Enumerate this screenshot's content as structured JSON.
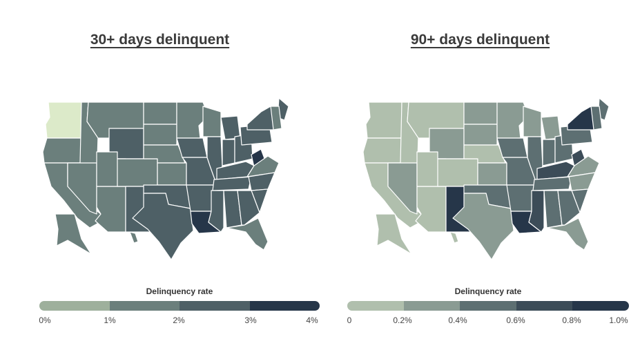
{
  "panels": [
    {
      "title": "30+ days delinquent",
      "legend": {
        "title": "Delinquency rate",
        "ticks": [
          "0%",
          "1%",
          "2%",
          "3%",
          "4%"
        ],
        "colors": [
          "#dceac9",
          "#9eb09c",
          "#6b7f7c",
          "#4e6066",
          "#263649"
        ]
      },
      "states": {
        "WA": 0,
        "OR": 2,
        "CA": 2,
        "ID": 2,
        "NV": 2,
        "AZ": 2,
        "MT": 2,
        "WY": 3,
        "UT": 2,
        "CO": 2,
        "NM": 3,
        "ND": 2,
        "SD": 2,
        "NE": 2,
        "KS": 2,
        "OK": 3,
        "TX": 3,
        "MN": 2,
        "IA": 3,
        "MO": 3,
        "AR": 3,
        "LA": 4,
        "WI": 2,
        "IL": 3,
        "MI": 3,
        "IN": 3,
        "KY": 3,
        "TN": 3,
        "MS": 3,
        "AL": 3,
        "OH": 3,
        "WV": 4,
        "VA": 2,
        "NC": 3,
        "SC": 3,
        "GA": 3,
        "FL": 2,
        "PA": 3,
        "NY": 3,
        "ME": 3,
        "NE-ST": 2,
        "AK": 2,
        "HI": 2
      }
    },
    {
      "title": "90+ days delinquent",
      "legend": {
        "title": "Delinquency rate",
        "ticks": [
          "0",
          "0.2%",
          "0.4%",
          "0.6%",
          "0.8%",
          "1.0%"
        ],
        "colors": [
          "#dceac9",
          "#b0bfad",
          "#8a9b93",
          "#5d6f72",
          "#3c4c58",
          "#263649"
        ]
      },
      "states": {
        "WA": 1,
        "OR": 1,
        "CA": 1,
        "ID": 1,
        "NV": 2,
        "AZ": 1,
        "MT": 1,
        "WY": 2,
        "UT": 1,
        "CO": 1,
        "NM": 5,
        "ND": 2,
        "SD": 2,
        "NE": 1,
        "KS": 2,
        "OK": 3,
        "TX": 2,
        "MN": 2,
        "IA": 3,
        "MO": 3,
        "AR": 3,
        "LA": 5,
        "WI": 2,
        "IL": 3,
        "MI": 2,
        "IN": 3,
        "KY": 4,
        "TN": 3,
        "MS": 4,
        "AL": 3,
        "OH": 3,
        "WV": 4,
        "VA": 2,
        "NC": 2,
        "SC": 3,
        "GA": 3,
        "FL": 2,
        "PA": 3,
        "NY": 5,
        "ME": 3,
        "NE-ST": 3,
        "AK": 1,
        "HI": 1
      }
    }
  ]
}
